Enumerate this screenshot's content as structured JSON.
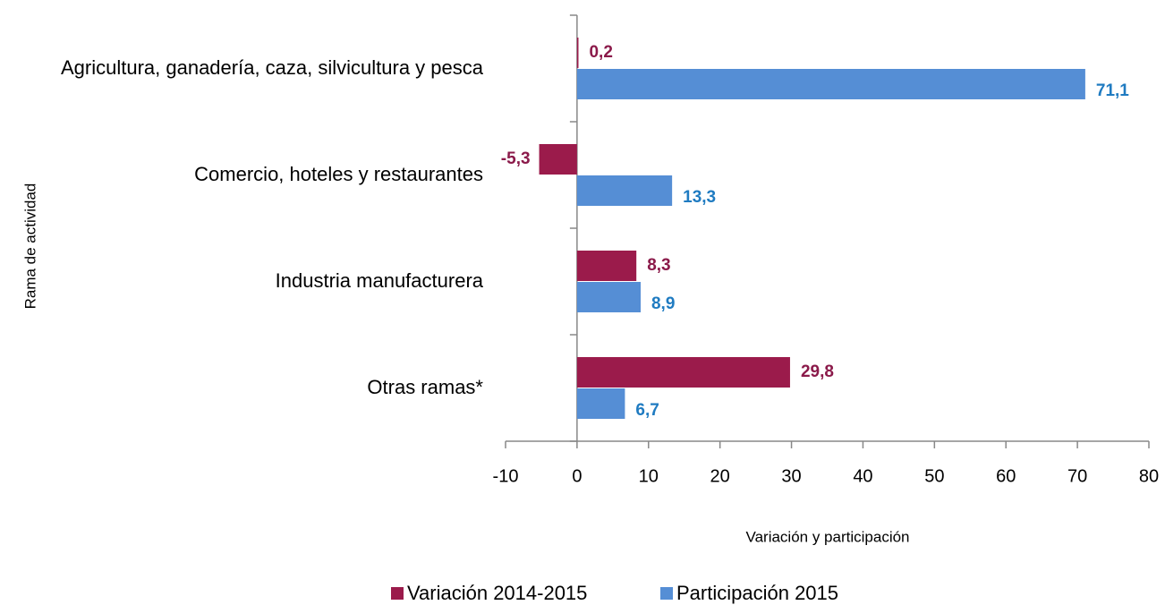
{
  "chart_data": {
    "type": "bar",
    "orientation": "horizontal",
    "categories": [
      "Agricultura, ganadería, caza, silvicultura y pesca",
      "Comercio, hoteles y restaurantes",
      "Industria manufacturera",
      "Otras ramas*"
    ],
    "series": [
      {
        "name": "Variación 2014-2015",
        "color": "#9b1b4b",
        "label_color": "#8b1a4a",
        "values": [
          0.2,
          -5.3,
          8.3,
          29.8
        ],
        "value_labels": [
          "0,2",
          "-5,3",
          "8,3",
          "29,8"
        ]
      },
      {
        "name": "Participación 2015",
        "color": "#558ed5",
        "label_color": "#1f7bc1",
        "values": [
          71.1,
          13.3,
          8.9,
          6.7
        ],
        "value_labels": [
          "71,1",
          "13,3",
          "8,9",
          "6,7"
        ]
      }
    ],
    "xlim": [
      -10,
      80
    ],
    "xticks": [
      -10,
      0,
      10,
      20,
      30,
      40,
      50,
      60,
      70,
      80
    ],
    "x_label": "Variación y participación",
    "y_label": "Rama de actividad",
    "legend": "bottom",
    "grid": false
  }
}
